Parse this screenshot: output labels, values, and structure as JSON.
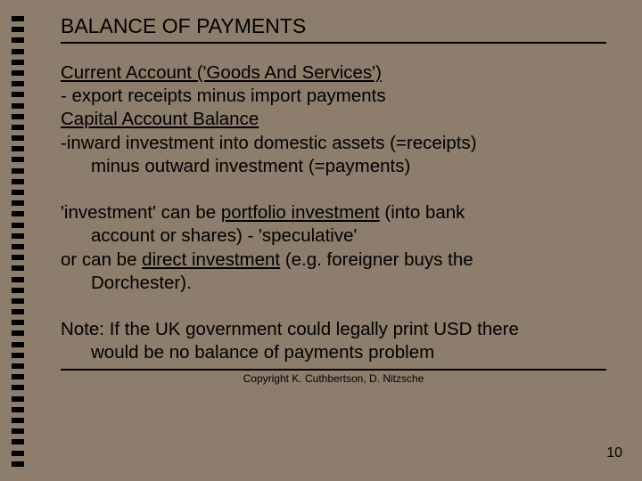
{
  "slide": {
    "background_color": "#8c7d6c",
    "text_color": "#000000",
    "tick_color": "#000000",
    "tick_count": 42,
    "title": "BALANCE OF PAYMENTS",
    "title_fontsize": 23,
    "body_fontsize": 20.5,
    "rule_color": "#000000",
    "lines": [
      {
        "type": "para",
        "runs": [
          {
            "t": "Current Account ('Goods And Services')",
            "u": true
          }
        ]
      },
      {
        "type": "para",
        "runs": [
          {
            "t": "- export receipts minus import payments"
          }
        ]
      },
      {
        "type": "para",
        "runs": [
          {
            "t": "Capital Account Balance",
            "u": true
          }
        ]
      },
      {
        "type": "para",
        "runs": [
          {
            "t": "-inward investment into domestic assets (=receipts)"
          }
        ]
      },
      {
        "type": "indent",
        "runs": [
          {
            "t": "minus outward investment (=payments)"
          }
        ]
      },
      {
        "type": "spacer"
      },
      {
        "type": "para",
        "runs": [
          {
            "t": "'investment' can be "
          },
          {
            "t": "portfolio investment",
            "u": true
          },
          {
            "t": " (into bank"
          }
        ]
      },
      {
        "type": "indent",
        "runs": [
          {
            "t": "account or shares) - 'speculative'"
          }
        ]
      },
      {
        "type": "para",
        "runs": [
          {
            "t": "or can be "
          },
          {
            "t": "direct investment",
            "u": true
          },
          {
            "t": " (e.g. foreigner buys the"
          }
        ]
      },
      {
        "type": "indent",
        "runs": [
          {
            "t": "Dorchester)."
          }
        ]
      },
      {
        "type": "spacer"
      },
      {
        "type": "para",
        "runs": [
          {
            "t": "Note:  If the UK government could legally print USD there"
          }
        ]
      },
      {
        "type": "indent",
        "runs": [
          {
            "t": "would be no balance of payments problem"
          }
        ]
      }
    ],
    "footer": "Copyright K. Cuthbertson, D. Nitzsche",
    "footer_fontsize": 12,
    "page_number": "10"
  }
}
